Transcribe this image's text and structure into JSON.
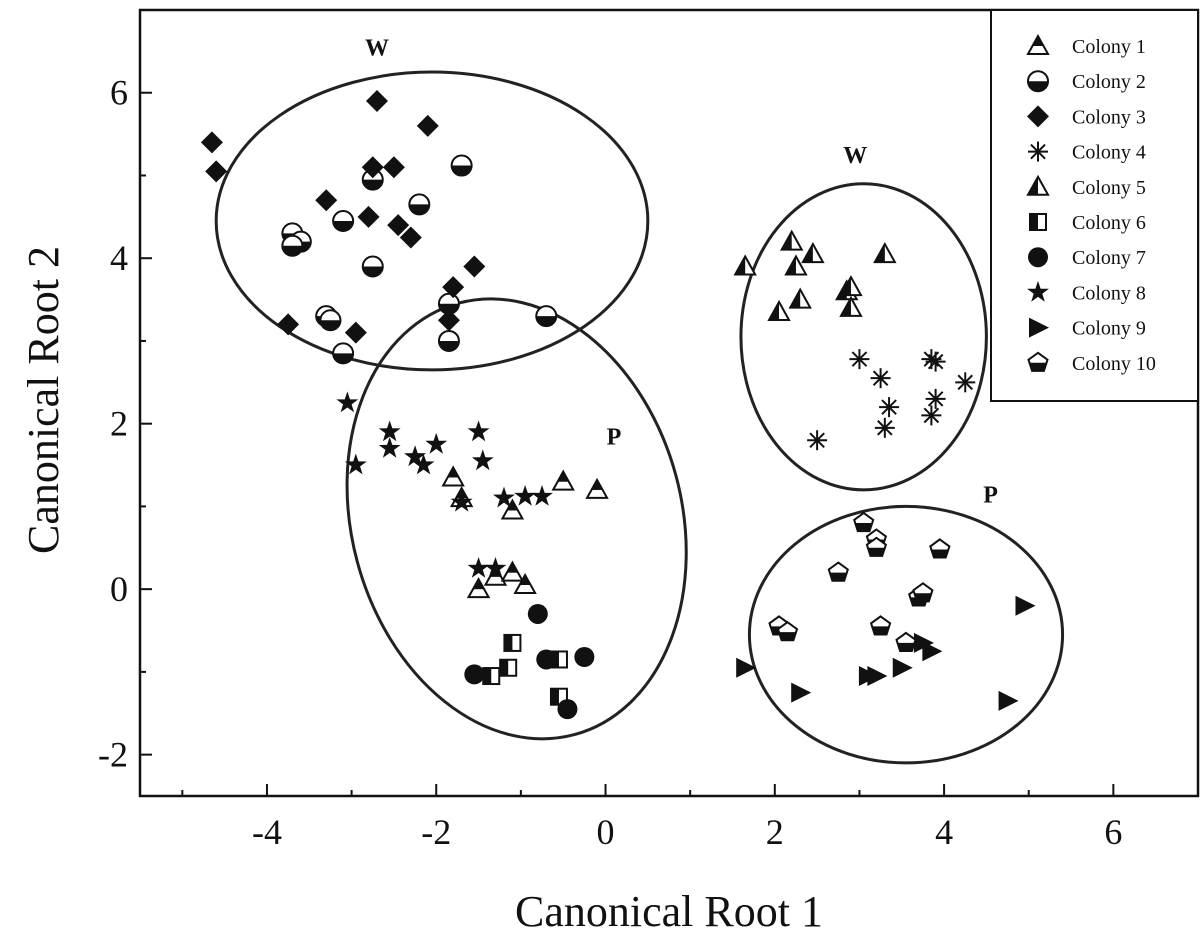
{
  "chart_data": {
    "type": "scatter",
    "title": "",
    "xlabel": "Canonical Root 1",
    "ylabel": "Canonical Root 2",
    "xlim": [
      -5.5,
      7.0
    ],
    "ylim": [
      -2.5,
      7.0
    ],
    "xticks": [
      -4,
      -2,
      0,
      2,
      4,
      6
    ],
    "yticks": [
      -2,
      0,
      2,
      4,
      6
    ],
    "xtick_labels": [
      "-4",
      "-2",
      "0",
      "2",
      "4",
      "6"
    ],
    "ytick_labels": [
      "-2",
      "0",
      "2",
      "4",
      "6"
    ],
    "grid": false,
    "legend_position": "top-right",
    "series": [
      {
        "name": "Colony 1",
        "marker": "half-triangle",
        "points": [
          [
            -1.8,
            1.35
          ],
          [
            -1.7,
            1.1
          ],
          [
            -1.1,
            0.95
          ],
          [
            -0.5,
            1.3
          ],
          [
            -0.1,
            1.2
          ],
          [
            -1.5,
            0.0
          ],
          [
            -1.3,
            0.15
          ],
          [
            -1.1,
            0.2
          ],
          [
            -0.95,
            0.05
          ]
        ]
      },
      {
        "name": "Colony 2",
        "marker": "half-circle",
        "points": [
          [
            -3.7,
            4.3
          ],
          [
            -3.6,
            4.2
          ],
          [
            -3.1,
            4.45
          ],
          [
            -2.75,
            4.95
          ],
          [
            -2.2,
            4.65
          ],
          [
            -1.7,
            5.12
          ],
          [
            -2.75,
            3.9
          ],
          [
            -3.3,
            3.3
          ],
          [
            -3.25,
            3.25
          ],
          [
            -3.1,
            2.85
          ],
          [
            -1.85,
            3.45
          ],
          [
            -1.85,
            3.0
          ],
          [
            -0.7,
            3.3
          ],
          [
            -3.7,
            4.15
          ]
        ]
      },
      {
        "name": "Colony 3",
        "marker": "diamond",
        "points": [
          [
            -4.65,
            5.4
          ],
          [
            -4.6,
            5.05
          ],
          [
            -2.7,
            5.9
          ],
          [
            -2.1,
            5.6
          ],
          [
            -2.75,
            5.1
          ],
          [
            -2.5,
            5.1
          ],
          [
            -3.3,
            4.7
          ],
          [
            -2.8,
            4.5
          ],
          [
            -2.45,
            4.4
          ],
          [
            -2.3,
            4.25
          ],
          [
            -1.55,
            3.9
          ],
          [
            -1.8,
            3.65
          ],
          [
            -1.85,
            3.25
          ],
          [
            -3.75,
            3.2
          ],
          [
            -2.95,
            3.1
          ]
        ]
      },
      {
        "name": "Colony 4",
        "marker": "asterisk",
        "points": [
          [
            2.5,
            1.8
          ],
          [
            3.0,
            2.78
          ],
          [
            3.25,
            2.55
          ],
          [
            3.85,
            2.78
          ],
          [
            3.9,
            2.75
          ],
          [
            4.25,
            2.5
          ],
          [
            3.9,
            2.3
          ],
          [
            3.35,
            2.2
          ],
          [
            3.85,
            2.1
          ],
          [
            3.3,
            1.95
          ]
        ]
      },
      {
        "name": "Colony 5",
        "marker": "half-triangle-alt",
        "points": [
          [
            1.65,
            3.9
          ],
          [
            2.2,
            4.2
          ],
          [
            2.45,
            4.05
          ],
          [
            3.3,
            4.05
          ],
          [
            2.25,
            3.9
          ],
          [
            2.85,
            3.6
          ],
          [
            2.9,
            3.65
          ],
          [
            2.3,
            3.5
          ],
          [
            2.05,
            3.35
          ],
          [
            2.9,
            3.4
          ]
        ]
      },
      {
        "name": "Colony 6",
        "marker": "half-square",
        "points": [
          [
            -1.1,
            -0.65
          ],
          [
            -1.15,
            -0.95
          ],
          [
            -1.35,
            -1.05
          ],
          [
            -0.55,
            -0.85
          ],
          [
            -0.55,
            -1.3
          ]
        ]
      },
      {
        "name": "Colony 7",
        "marker": "circle",
        "points": [
          [
            -0.8,
            -0.3
          ],
          [
            -0.7,
            -0.85
          ],
          [
            -0.25,
            -0.82
          ],
          [
            -1.55,
            -1.03
          ],
          [
            -0.45,
            -1.45
          ]
        ]
      },
      {
        "name": "Colony 8",
        "marker": "star",
        "points": [
          [
            -3.05,
            2.25
          ],
          [
            -2.55,
            1.9
          ],
          [
            -2.55,
            1.7
          ],
          [
            -2.25,
            1.6
          ],
          [
            -2.15,
            1.5
          ],
          [
            -2.0,
            1.75
          ],
          [
            -1.5,
            1.9
          ],
          [
            -1.45,
            1.55
          ],
          [
            -2.95,
            1.5
          ],
          [
            -1.7,
            1.05
          ],
          [
            -1.2,
            1.1
          ],
          [
            -0.95,
            1.12
          ],
          [
            -0.75,
            1.12
          ],
          [
            -1.5,
            0.25
          ],
          [
            -1.3,
            0.25
          ]
        ]
      },
      {
        "name": "Colony 9",
        "marker": "triangle-right",
        "points": [
          [
            1.65,
            -0.95
          ],
          [
            2.3,
            -1.25
          ],
          [
            3.1,
            -1.05
          ],
          [
            3.2,
            -1.05
          ],
          [
            3.5,
            -0.95
          ],
          [
            3.75,
            -0.65
          ],
          [
            3.85,
            -0.75
          ],
          [
            4.95,
            -0.2
          ],
          [
            4.75,
            -1.35
          ]
        ]
      },
      {
        "name": "Colony 10",
        "marker": "pentagon",
        "points": [
          [
            3.05,
            0.8
          ],
          [
            3.2,
            0.6
          ],
          [
            3.2,
            0.5
          ],
          [
            3.95,
            0.48
          ],
          [
            2.75,
            0.2
          ],
          [
            3.7,
            -0.1
          ],
          [
            3.75,
            -0.05
          ],
          [
            2.05,
            -0.45
          ],
          [
            2.15,
            -0.52
          ],
          [
            3.25,
            -0.45
          ],
          [
            3.55,
            -0.65
          ]
        ]
      }
    ],
    "clusters": [
      {
        "label": "W",
        "center": [
          -2.05,
          4.45
        ],
        "radius": [
          2.55,
          1.8
        ],
        "rotation": 0
      },
      {
        "label": "P",
        "center": [
          -1.05,
          0.85
        ],
        "radius": [
          1.95,
          2.7
        ],
        "rotation": -15
      },
      {
        "label": "W",
        "center": [
          3.05,
          3.05
        ],
        "radius": [
          1.45,
          1.85
        ],
        "rotation": 0
      },
      {
        "label": "P",
        "center": [
          3.55,
          -0.55
        ],
        "radius": [
          1.85,
          1.55
        ],
        "rotation": 0
      }
    ],
    "cluster_label_positions": [
      [
        -2.7,
        6.45
      ],
      [
        0.1,
        1.75
      ],
      [
        2.95,
        5.15
      ],
      [
        4.55,
        1.05
      ]
    ]
  }
}
